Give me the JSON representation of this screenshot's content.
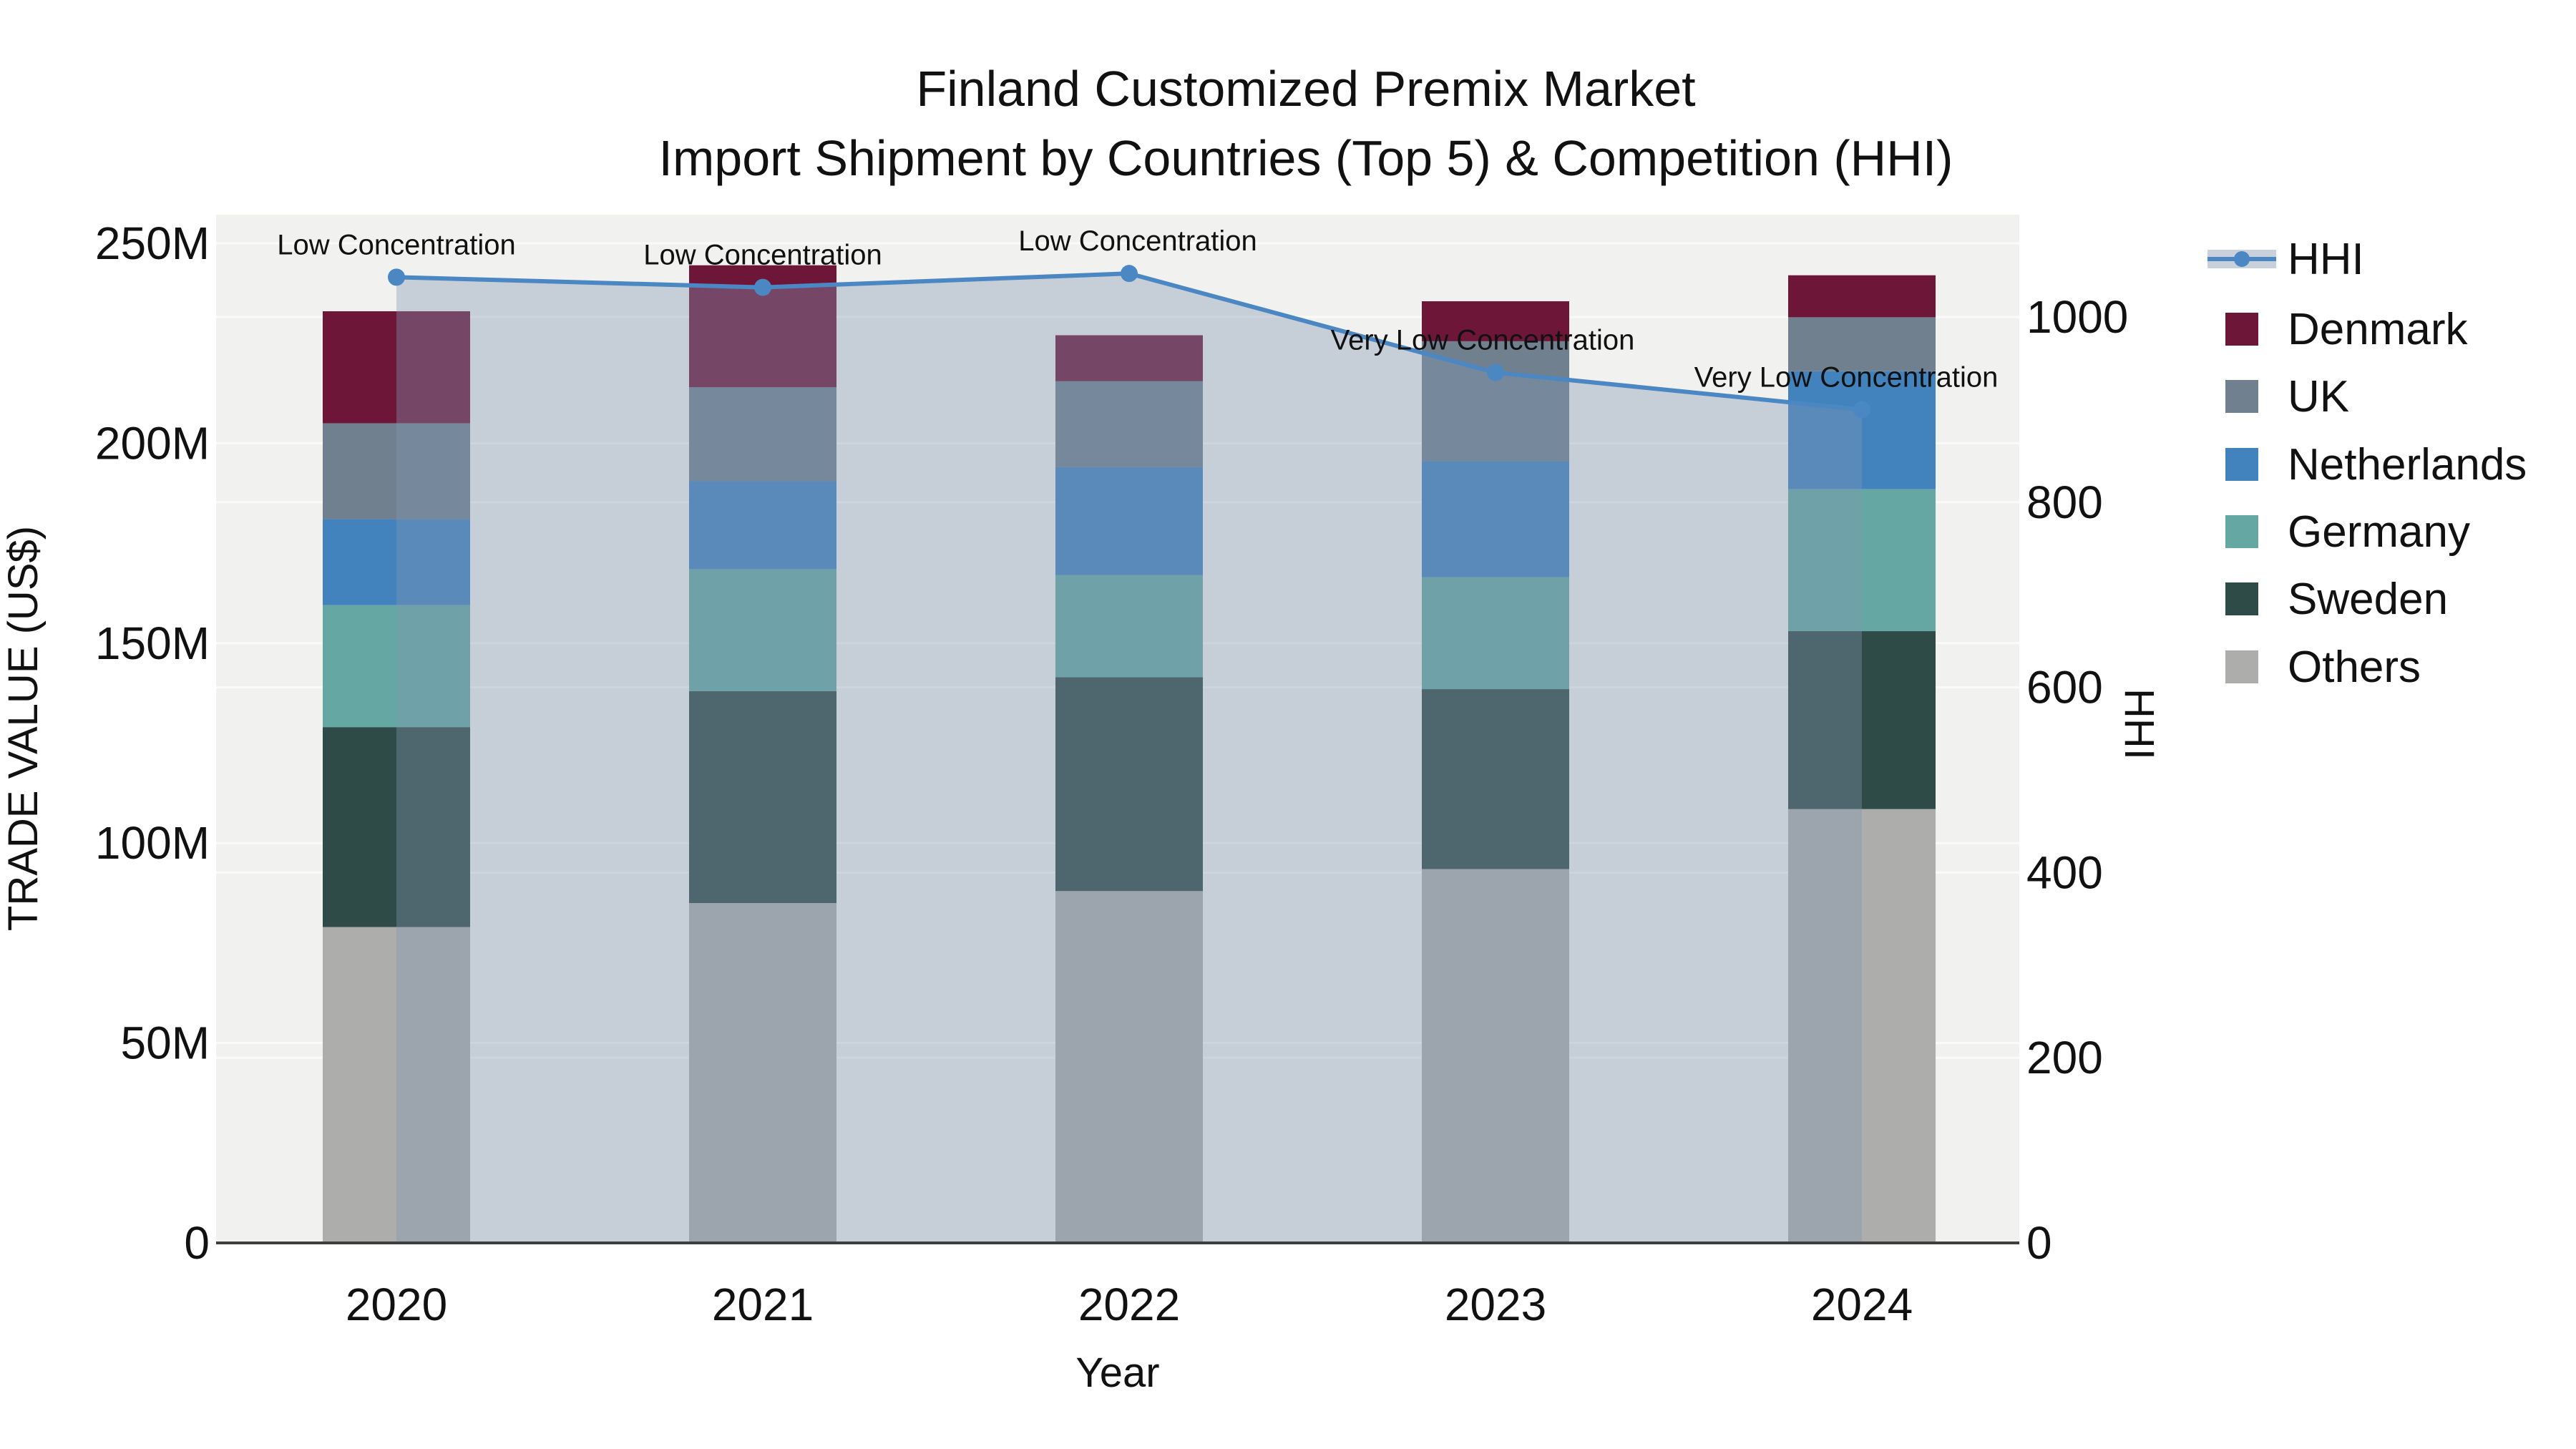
{
  "title": {
    "line1": "Finland Customized Premix Market",
    "line2": "Import Shipment by Countries (Top 5) & Competition (HHI)"
  },
  "axes": {
    "x_title": "Year",
    "y_left_title": "TRADE VALUE (US$)",
    "y_right_title": "HHI",
    "y_left_ticks": [
      {
        "label": "0",
        "value": 0
      },
      {
        "label": "50M",
        "value": 50
      },
      {
        "label": "100M",
        "value": 100
      },
      {
        "label": "150M",
        "value": 150
      },
      {
        "label": "200M",
        "value": 200
      },
      {
        "label": "250M",
        "value": 250
      }
    ],
    "y_right_ticks": [
      {
        "label": "0",
        "value": 0
      },
      {
        "label": "200",
        "value": 200
      },
      {
        "label": "400",
        "value": 400
      },
      {
        "label": "600",
        "value": 600
      },
      {
        "label": "800",
        "value": 800
      },
      {
        "label": "1000",
        "value": 1000
      }
    ]
  },
  "legend": {
    "items": [
      "HHI",
      "Denmark",
      "UK",
      "Netherlands",
      "Germany",
      "Sweden",
      "Others"
    ]
  },
  "chart_data": {
    "type": "stacked-bar+line",
    "title": "Finland Customized Premix Market — Import Shipment by Countries (Top 5) & Competition (HHI)",
    "categories": [
      "2020",
      "2021",
      "2022",
      "2023",
      "2024"
    ],
    "value_unit": "million US$",
    "ylim_left": [
      0,
      250
    ],
    "ylim_right": [
      0,
      1000
    ],
    "grid": true,
    "legend_position": "right",
    "series": [
      {
        "name": "Denmark",
        "color": "#6E1638",
        "values": [
          28,
          30.5,
          11.5,
          10,
          10.5
        ]
      },
      {
        "name": "UK",
        "color": "#70808F",
        "values": [
          24,
          23.5,
          21.5,
          30,
          13.5
        ]
      },
      {
        "name": "Netherlands",
        "color": "#4283BE",
        "values": [
          21.5,
          22,
          27,
          29,
          29.5
        ]
      },
      {
        "name": "Germany",
        "color": "#65A8A3",
        "values": [
          30.5,
          30.5,
          25.5,
          28,
          35.5
        ]
      },
      {
        "name": "Sweden",
        "color": "#2F4B48",
        "values": [
          50,
          53,
          53.5,
          45,
          44.5
        ]
      },
      {
        "name": "Others",
        "color": "#ADADAB",
        "values": [
          79,
          85,
          88,
          93.5,
          108.5
        ]
      }
    ],
    "stack_order_bottom_to_top": [
      "Others",
      "Sweden",
      "Germany",
      "Netherlands",
      "UK",
      "Denmark"
    ],
    "line_series": {
      "name": "HHI",
      "color": "#4B87C2",
      "area_color": "#8296AF",
      "area_opacity": 0.38,
      "values": [
        1043,
        1032,
        1047,
        940,
        900
      ],
      "annotations": [
        "Low Concentration",
        "Low Concentration",
        "Low Concentration",
        "Very Low Concentration",
        "Very Low Concentration"
      ]
    }
  },
  "colors": {
    "plot_background": "#F1F1F0",
    "gridline": "#FAFAFA",
    "axis_line": "#3F3F3F",
    "text": "#111111"
  }
}
